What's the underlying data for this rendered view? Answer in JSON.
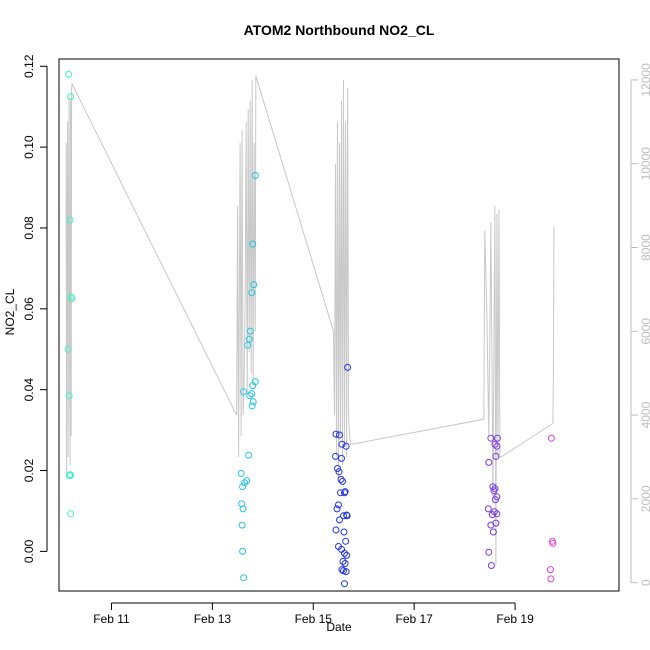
{
  "chart_data": {
    "type": "scatter",
    "title": "ATOM2 Northbound NO2_CL",
    "xlabel": "Date",
    "ylabel": "NO2_CL",
    "x_ticks": [
      "Feb 11",
      "Feb 13",
      "Feb 15",
      "Feb 17",
      "Feb 19"
    ],
    "x_tick_values": [
      11,
      13,
      15,
      17,
      19
    ],
    "xlim": [
      9.96,
      21.06
    ],
    "ylim": [
      -0.0098,
      0.1218
    ],
    "y_ticks": [
      "0.00",
      "0.02",
      "0.04",
      "0.06",
      "0.08",
      "0.10",
      "0.12"
    ],
    "y_tick_values": [
      0,
      0.02,
      0.04,
      0.06,
      0.08,
      0.1,
      0.12
    ],
    "y2_ticks": [
      "0",
      "2000",
      "4000",
      "6000",
      "8000",
      "10000",
      "12000"
    ],
    "y2_tick_values": [
      0,
      2000,
      4000,
      6000,
      8000,
      10000,
      12000
    ],
    "y2lim": [
      -200,
      12500
    ],
    "colors": {
      "points_day1": "#3df5c4",
      "points_day2": "#22c4e6",
      "points_day3": "#2233e6",
      "points_day4": "#7a3ae6",
      "points_day5": "#e43ae6",
      "secondary_line": "#c8c8c8",
      "axes": "#000000",
      "secondary_axis": "#bdbdbd"
    },
    "series": [
      {
        "color": "#3df5c4",
        "x": [
          10.15,
          10.19,
          10.18,
          10.2,
          10.21,
          10.14,
          10.16,
          10.17,
          10.18,
          10.19,
          10.19
        ],
        "y": [
          0.118,
          0.1125,
          0.082,
          0.063,
          0.0625,
          0.05,
          0.0385,
          0.0187,
          0.019,
          0.0188,
          0.0093
        ]
      },
      {
        "color": "#22c4e6",
        "x": [
          13.85,
          13.8,
          13.82,
          13.78,
          13.75,
          13.73,
          13.7,
          13.85,
          13.8,
          13.81,
          13.62,
          13.74,
          13.78,
          13.79,
          13.72,
          13.57,
          13.64,
          13.68,
          13.6,
          13.58,
          13.61,
          13.59,
          13.6,
          13.62
        ],
        "y": [
          0.093,
          0.076,
          0.066,
          0.064,
          0.0545,
          0.0525,
          0.051,
          0.042,
          0.041,
          0.037,
          0.0395,
          0.0385,
          0.039,
          0.036,
          0.0238,
          0.0193,
          0.017,
          0.0175,
          0.016,
          0.0118,
          0.0105,
          0.0065,
          0.0,
          -0.0065
        ]
      },
      {
        "color": "#2233e6",
        "x": [
          15.68,
          15.45,
          15.52,
          15.57,
          15.65,
          15.44,
          15.56,
          15.48,
          15.51,
          15.55,
          15.58,
          15.63,
          15.54,
          15.62,
          15.5,
          15.47,
          15.66,
          15.6,
          15.67,
          15.52,
          15.45,
          15.61,
          15.64,
          15.5,
          15.56,
          15.62,
          15.66,
          15.59,
          15.63,
          15.57,
          15.6,
          15.65,
          15.62
        ],
        "y": [
          0.0455,
          0.029,
          0.0288,
          0.0265,
          0.026,
          0.0235,
          0.023,
          0.0205,
          0.0197,
          0.0178,
          0.0173,
          0.0148,
          0.0145,
          0.0145,
          0.0115,
          0.0105,
          0.009,
          0.0088,
          0.0088,
          0.0078,
          0.0053,
          0.0048,
          0.0025,
          0.0012,
          0.0005,
          -0.0005,
          -0.001,
          -0.0025,
          -0.003,
          -0.0045,
          -0.0048,
          -0.005,
          -0.008
        ]
      },
      {
        "color": "#7a3ae6",
        "x": [
          18.52,
          18.65,
          18.6,
          18.64,
          18.48,
          18.62,
          18.56,
          18.6,
          18.58,
          18.64,
          18.61,
          18.47,
          18.59,
          18.64,
          18.55,
          18.62,
          18.52,
          18.57,
          18.48,
          18.53
        ],
        "y": [
          0.028,
          0.028,
          0.0265,
          0.026,
          0.022,
          0.0235,
          0.016,
          0.0155,
          0.015,
          0.0135,
          0.0128,
          0.0105,
          0.0098,
          0.0093,
          0.0091,
          0.007,
          0.0065,
          0.0048,
          -0.0002,
          -0.0035
        ]
      },
      {
        "color": "#e43ae6",
        "x": [
          19.72,
          19.74,
          19.75,
          19.7,
          19.71
        ],
        "y": [
          0.028,
          0.0025,
          0.002,
          -0.0045,
          -0.0068
        ]
      }
    ],
    "secondary_series": {
      "color": "#c8c8c8",
      "x": [
        10.1,
        10.11,
        10.12,
        10.13,
        10.14,
        10.15,
        10.16,
        10.17,
        10.18,
        10.19,
        10.2,
        10.21,
        10.22,
        13.48,
        13.5,
        13.52,
        13.55,
        13.57,
        13.59,
        13.61,
        13.63,
        13.65,
        13.67,
        13.69,
        13.71,
        13.73,
        13.75,
        13.77,
        13.79,
        13.81,
        13.83,
        13.85,
        13.86,
        15.4,
        15.42,
        15.44,
        15.46,
        15.48,
        15.5,
        15.52,
        15.54,
        15.56,
        15.58,
        15.6,
        15.62,
        15.64,
        15.66,
        15.68,
        15.7,
        15.72,
        15.74,
        18.38,
        18.4,
        18.44,
        18.48,
        18.52,
        18.56,
        18.6,
        18.62,
        18.64,
        18.66,
        18.68,
        18.7,
        18.72,
        19.75,
        19.76,
        19.77
      ],
      "y": [
        10500,
        2500,
        9000,
        11000,
        3000,
        8500,
        11600,
        5500,
        2800,
        11500,
        3500,
        11800,
        11900,
        4000,
        9000,
        3000,
        10500,
        3500,
        10800,
        4000,
        5000,
        7000,
        11000,
        4500,
        11300,
        5500,
        11500,
        5000,
        12000,
        4800,
        10500,
        6000,
        12100,
        6000,
        4000,
        10000,
        3000,
        11000,
        2500,
        10500,
        3500,
        11500,
        2800,
        12000,
        3300,
        11000,
        3000,
        11800,
        4000,
        3500,
        3300,
        3900,
        8400,
        6500,
        3500,
        8600,
        2000,
        9000,
        400,
        8800,
        3000,
        8900,
        3000,
        3000,
        3800,
        5000,
        8500
      ]
    }
  }
}
